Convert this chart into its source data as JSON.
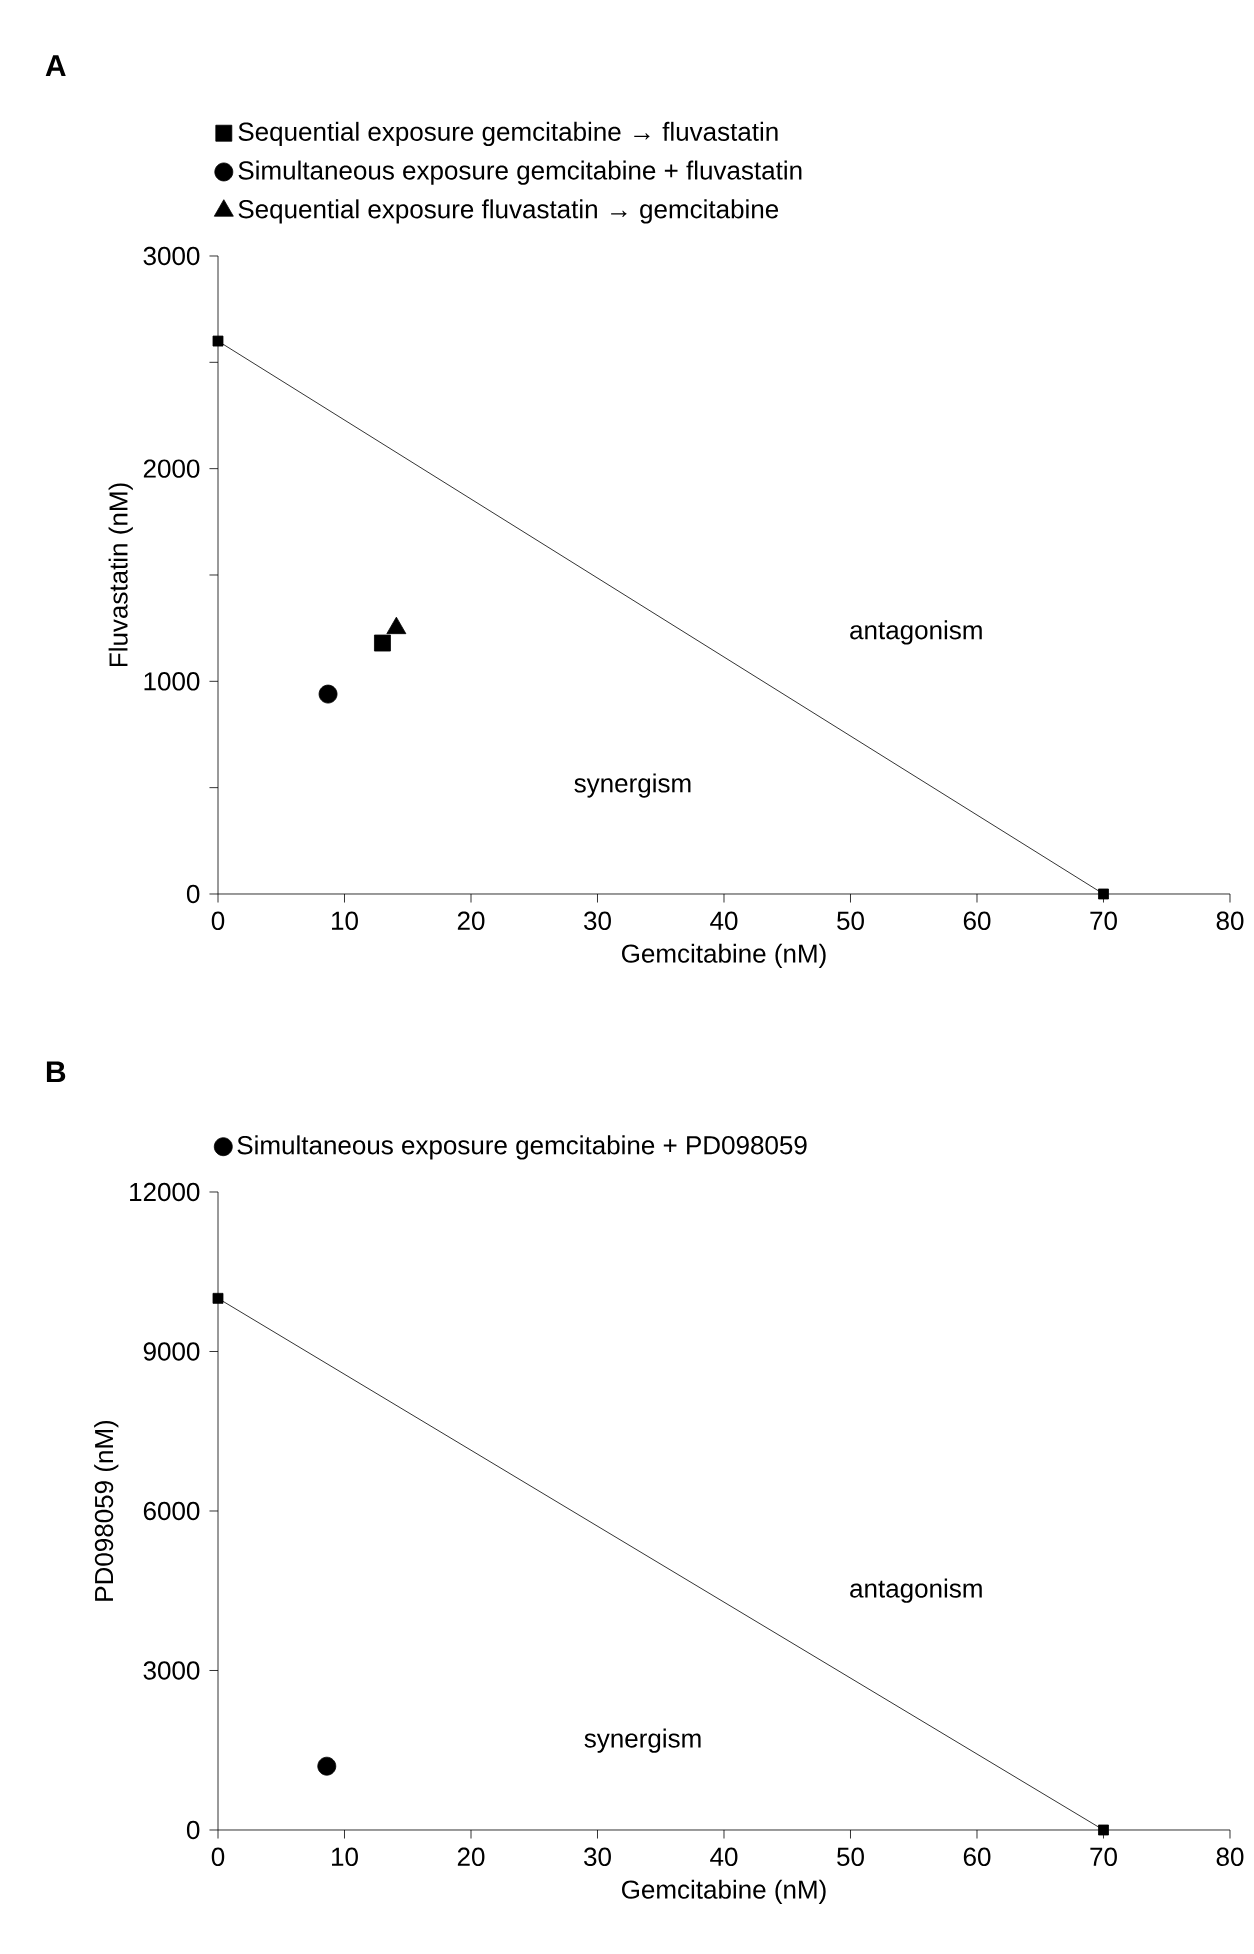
{
  "chart_data": [
    {
      "type": "scatter",
      "title": "A",
      "xlabel": "Gemcitabine (nM)",
      "ylabel": "Fluvastatin (nM)",
      "xlim": [
        0,
        80
      ],
      "ylim": [
        0,
        3000
      ],
      "xticks": [
        0,
        10,
        20,
        30,
        40,
        50,
        60,
        70,
        80
      ],
      "yticks": [
        0,
        {
          "value": 500,
          "label": null
        },
        1000,
        {
          "value": 1500,
          "label": null
        },
        2000,
        {
          "value": 2500,
          "label": null
        },
        3000
      ],
      "legend": "top",
      "series": [
        {
          "type": "line",
          "color": "#000000",
          "marker": "square",
          "x": [
            0,
            70
          ],
          "values": [
            2600,
            0
          ]
        },
        {
          "name": "Sequential exposure gemcitabine → fluvastatin",
          "color": "#000000",
          "marker": "square",
          "x": [
            13
          ],
          "values": [
            1180
          ]
        },
        {
          "name": "Simultaneous exposure gemcitabine + fluvastatin",
          "color": "#000000",
          "marker": "circle",
          "x": [
            8.7
          ],
          "values": [
            940
          ]
        },
        {
          "name": "Sequential exposure fluvastatin → gemcitabine",
          "color": "#000000",
          "marker": "triangle",
          "x": [
            14.1
          ],
          "values": [
            1250
          ]
        }
      ],
      "annotations": [
        "antagonism",
        "synergism"
      ]
    },
    {
      "type": "scatter",
      "title": "B",
      "xlabel": "Gemcitabine (nM)",
      "ylabel": "PD098059 (nM)",
      "xlim": [
        0,
        80
      ],
      "ylim": [
        0,
        12000
      ],
      "xticks": [
        0,
        10,
        20,
        30,
        40,
        50,
        60,
        70,
        80
      ],
      "yticks": [
        0,
        3000,
        6000,
        9000,
        12000
      ],
      "legend": "top",
      "series": [
        {
          "type": "line",
          "color": "#000000",
          "marker": "square",
          "x": [
            0,
            70
          ],
          "values": [
            10000,
            0
          ]
        },
        {
          "name": "Simultaneous exposure gemcitabine + PD098059",
          "color": "#000000",
          "marker": "circle",
          "x": [
            8.6
          ],
          "values": [
            1200
          ]
        }
      ],
      "annotations": [
        "antagonism",
        "synergism"
      ]
    }
  ]
}
